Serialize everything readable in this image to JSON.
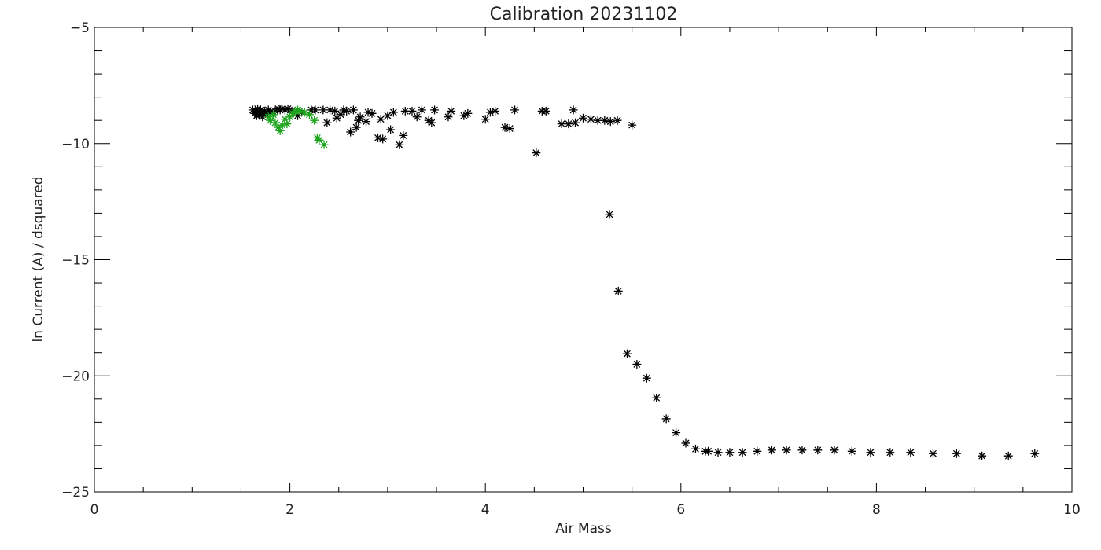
{
  "chart_data": {
    "type": "scatter",
    "title": "Calibration  20231102",
    "xlabel": "Air Mass",
    "ylabel": "ln Current (A) / dsquared",
    "xlim": [
      0,
      10
    ],
    "ylim": [
      -25,
      -5
    ],
    "xticks": [
      0,
      2,
      4,
      6,
      8,
      10
    ],
    "yticks": [
      -25,
      -20,
      -15,
      -10,
      -5
    ],
    "grid": false,
    "legend": "none",
    "marker": "asterisk",
    "series": [
      {
        "color": "#000000",
        "points": [
          [
            1.62,
            -8.55
          ],
          [
            1.64,
            -8.7
          ],
          [
            1.65,
            -8.6
          ],
          [
            1.66,
            -8.8
          ],
          [
            1.67,
            -8.5
          ],
          [
            1.68,
            -8.65
          ],
          [
            1.69,
            -8.75
          ],
          [
            1.7,
            -8.55
          ],
          [
            1.72,
            -8.85
          ],
          [
            1.74,
            -8.6
          ],
          [
            1.75,
            -8.7
          ],
          [
            1.78,
            -8.55
          ],
          [
            1.8,
            -8.65
          ],
          [
            1.85,
            -8.6
          ],
          [
            1.88,
            -8.5
          ],
          [
            1.9,
            -8.55
          ],
          [
            1.92,
            -8.5
          ],
          [
            1.95,
            -8.55
          ],
          [
            1.98,
            -8.5
          ],
          [
            2.02,
            -8.6
          ],
          [
            2.08,
            -8.8
          ],
          [
            2.12,
            -8.65
          ],
          [
            2.22,
            -8.55
          ],
          [
            2.26,
            -8.55
          ],
          [
            2.34,
            -8.55
          ],
          [
            2.38,
            -9.1
          ],
          [
            2.41,
            -8.55
          ],
          [
            2.46,
            -8.6
          ],
          [
            2.48,
            -8.9
          ],
          [
            2.52,
            -8.75
          ],
          [
            2.55,
            -8.55
          ],
          [
            2.58,
            -8.6
          ],
          [
            2.62,
            -9.5
          ],
          [
            2.65,
            -8.55
          ],
          [
            2.68,
            -9.3
          ],
          [
            2.7,
            -9.0
          ],
          [
            2.72,
            -8.85
          ],
          [
            2.78,
            -9.05
          ],
          [
            2.8,
            -8.65
          ],
          [
            2.84,
            -8.7
          ],
          [
            2.9,
            -9.75
          ],
          [
            2.93,
            -8.95
          ],
          [
            2.95,
            -9.8
          ],
          [
            3.0,
            -8.8
          ],
          [
            3.03,
            -9.4
          ],
          [
            3.06,
            -8.65
          ],
          [
            3.12,
            -10.05
          ],
          [
            3.16,
            -9.65
          ],
          [
            3.18,
            -8.6
          ],
          [
            3.25,
            -8.6
          ],
          [
            3.3,
            -8.85
          ],
          [
            3.35,
            -8.55
          ],
          [
            3.42,
            -9.0
          ],
          [
            3.45,
            -9.1
          ],
          [
            3.48,
            -8.55
          ],
          [
            3.62,
            -8.85
          ],
          [
            3.65,
            -8.6
          ],
          [
            3.78,
            -8.8
          ],
          [
            3.82,
            -8.7
          ],
          [
            4.0,
            -8.95
          ],
          [
            4.05,
            -8.65
          ],
          [
            4.1,
            -8.6
          ],
          [
            4.2,
            -9.3
          ],
          [
            4.25,
            -9.35
          ],
          [
            4.3,
            -8.55
          ],
          [
            4.52,
            -10.4
          ],
          [
            4.58,
            -8.6
          ],
          [
            4.62,
            -8.6
          ],
          [
            4.78,
            -9.15
          ],
          [
            4.85,
            -9.15
          ],
          [
            4.9,
            -8.55
          ],
          [
            4.92,
            -9.1
          ],
          [
            5.0,
            -8.9
          ],
          [
            5.08,
            -8.95
          ],
          [
            5.15,
            -9.0
          ],
          [
            5.22,
            -9.0
          ],
          [
            5.28,
            -9.05
          ],
          [
            5.35,
            -9.0
          ],
          [
            5.5,
            -9.2
          ],
          [
            5.27,
            -13.05
          ],
          [
            5.36,
            -16.35
          ],
          [
            5.45,
            -19.05
          ],
          [
            5.55,
            -19.5
          ],
          [
            5.65,
            -20.1
          ],
          [
            5.75,
            -20.95
          ],
          [
            5.85,
            -21.85
          ],
          [
            5.95,
            -22.45
          ],
          [
            6.05,
            -22.9
          ],
          [
            6.15,
            -23.15
          ],
          [
            6.25,
            -23.25
          ],
          [
            6.28,
            -23.25
          ],
          [
            6.38,
            -23.3
          ],
          [
            6.5,
            -23.3
          ],
          [
            6.63,
            -23.3
          ],
          [
            6.78,
            -23.25
          ],
          [
            6.93,
            -23.2
          ],
          [
            7.08,
            -23.2
          ],
          [
            7.24,
            -23.2
          ],
          [
            7.4,
            -23.2
          ],
          [
            7.57,
            -23.2
          ],
          [
            7.75,
            -23.25
          ],
          [
            7.94,
            -23.3
          ],
          [
            8.14,
            -23.3
          ],
          [
            8.35,
            -23.3
          ],
          [
            8.58,
            -23.35
          ],
          [
            8.82,
            -23.35
          ],
          [
            9.08,
            -23.45
          ],
          [
            9.35,
            -23.45
          ],
          [
            9.62,
            -23.35
          ]
        ]
      },
      {
        "color": "#1aa31a",
        "points": [
          [
            1.78,
            -8.85
          ],
          [
            1.8,
            -9.0
          ],
          [
            1.83,
            -8.75
          ],
          [
            1.85,
            -9.1
          ],
          [
            1.88,
            -9.3
          ],
          [
            1.9,
            -9.45
          ],
          [
            1.92,
            -9.2
          ],
          [
            1.95,
            -8.95
          ],
          [
            1.97,
            -9.15
          ],
          [
            2.0,
            -8.85
          ],
          [
            2.03,
            -8.7
          ],
          [
            2.06,
            -8.6
          ],
          [
            2.08,
            -8.55
          ],
          [
            2.1,
            -8.6
          ],
          [
            2.15,
            -8.65
          ],
          [
            2.2,
            -8.75
          ],
          [
            2.25,
            -9.0
          ],
          [
            2.28,
            -9.75
          ],
          [
            2.3,
            -9.85
          ],
          [
            2.35,
            -10.05
          ]
        ]
      }
    ]
  }
}
